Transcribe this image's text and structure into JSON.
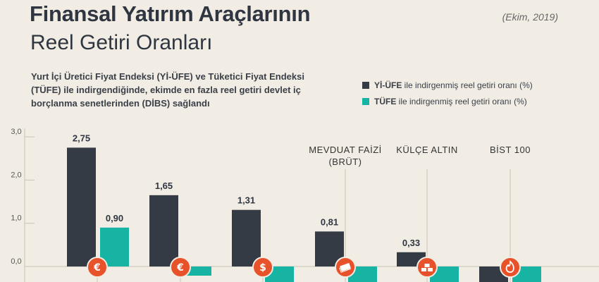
{
  "header": {
    "title_line1": "Finansal Yatırım Araçlarının",
    "title_line2": "Reel Getiri Oranları",
    "date": "(Ekim, 2019)"
  },
  "description": [
    "Yurt İçi Üretici Fiyat Endeksi (Yİ-ÜFE) ve Tüketici Fiyat Endeksi",
    "(TÜFE) ile indirgendiğinde, ekimde en fazla reel getiri devlet iç",
    "borçlanma senetlerinden (DİBS) sağlandı"
  ],
  "legend": [
    {
      "key": "Yİ-ÜFE",
      "text": " ile indirgenmiş reel getiri oranı (%)",
      "color": "#353b45"
    },
    {
      "key": "TÜFE",
      "text": " ile indirgenmiş reel getiri oranı (%)",
      "color": "#17b4a4"
    }
  ],
  "chart_data": {
    "type": "bar",
    "categories": [
      "",
      "",
      "",
      "MEVDUAT FAİZİ\n(BRÜT)",
      "KÜLÇE ALTIN",
      "BİST 100"
    ],
    "category_icons": [
      "euro-icon",
      "euro-icon",
      "dollar-icon",
      "banknote-icon",
      "gold-bars-icon",
      "fire-icon"
    ],
    "series": [
      {
        "name": "Yİ-ÜFE ile indirgenmiş reel getiri oranı (%)",
        "values": [
          2.75,
          1.65,
          1.31,
          0.81,
          0.33,
          null
        ],
        "labels": [
          "2,75",
          "1,65",
          "1,31",
          "0,81",
          "0,33",
          ""
        ],
        "color": "#353b45"
      },
      {
        "name": "TÜFE ile indirgenmiş reel getiri oranı (%)",
        "values": [
          0.9,
          null,
          null,
          null,
          null,
          null
        ],
        "labels": [
          "0,90",
          "",
          "",
          "",
          "",
          ""
        ],
        "color": "#17b4a4"
      }
    ],
    "ytick_labels": [
      "3,0",
      "2,0",
      "1,0",
      "0,0"
    ],
    "yticks": [
      3,
      2,
      1,
      0
    ],
    "ylim": [
      -0.4,
      3.0
    ],
    "grid": false,
    "legend_position": "top-right",
    "icon_color": "#e8522a"
  }
}
